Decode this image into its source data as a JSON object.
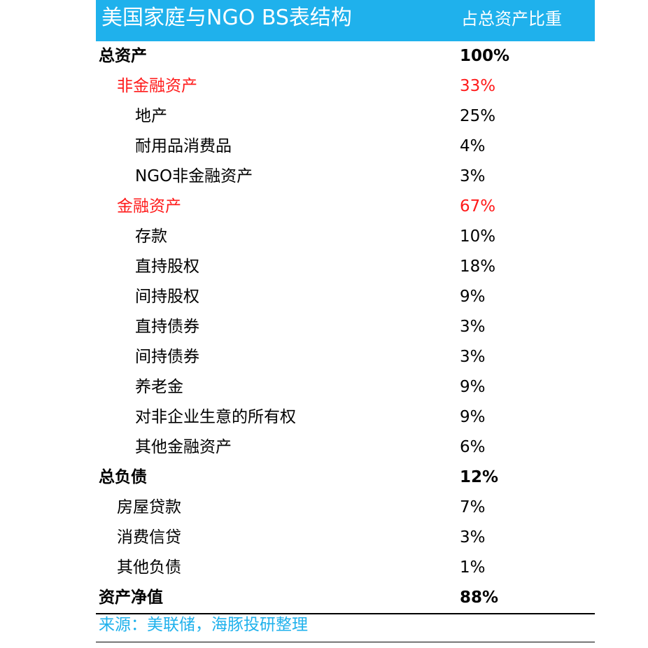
{
  "header": {
    "title": "美国家庭与NGO BS表结构",
    "column": "占总资产比重",
    "background": "#1fb1ec"
  },
  "rows": [
    {
      "label": "总资产",
      "value": "100%",
      "level": 0,
      "highlight": false
    },
    {
      "label": "非金融资产",
      "value": "33%",
      "level": 1,
      "highlight": true
    },
    {
      "label": "地产",
      "value": "25%",
      "level": 2,
      "highlight": false
    },
    {
      "label": "耐用品消费品",
      "value": "4%",
      "level": 2,
      "highlight": false
    },
    {
      "label": "NGO非金融资产",
      "value": "3%",
      "level": 2,
      "highlight": false
    },
    {
      "label": "金融资产",
      "value": "67%",
      "level": 1,
      "highlight": true
    },
    {
      "label": "存款",
      "value": "10%",
      "level": 2,
      "highlight": false
    },
    {
      "label": "直持股权",
      "value": "18%",
      "level": 2,
      "highlight": false
    },
    {
      "label": "间持股权",
      "value": "9%",
      "level": 2,
      "highlight": false
    },
    {
      "label": "直持债券",
      "value": "3%",
      "level": 2,
      "highlight": false
    },
    {
      "label": "间持债券",
      "value": "3%",
      "level": 2,
      "highlight": false
    },
    {
      "label": "养老金",
      "value": "9%",
      "level": 2,
      "highlight": false
    },
    {
      "label": "对非企业生意的所有权",
      "value": "9%",
      "level": 2,
      "highlight": false
    },
    {
      "label": "其他金融资产",
      "value": "6%",
      "level": 2,
      "highlight": false
    },
    {
      "label": "总负债",
      "value": "12%",
      "level": 0,
      "highlight": false
    },
    {
      "label": "房屋贷款",
      "value": "7%",
      "level": 1,
      "highlight": false
    },
    {
      "label": "消费信贷",
      "value": "3%",
      "level": 1,
      "highlight": false
    },
    {
      "label": "其他负债",
      "value": "1%",
      "level": 1,
      "highlight": false
    },
    {
      "label": "资产净值",
      "value": "88%",
      "level": 0,
      "highlight": false
    }
  ],
  "source": "来源：美联储，海豚投研整理",
  "colors": {
    "highlight": "#ff1a1a",
    "accent": "#1fb1ec",
    "text": "#000000"
  }
}
